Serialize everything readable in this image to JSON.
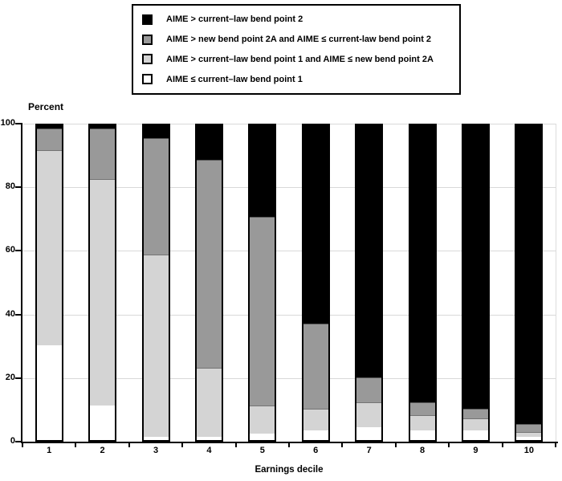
{
  "titles": {
    "y_axis_title": "Percent",
    "x_axis_title": "Earnings decile"
  },
  "legend": {
    "items": [
      {
        "label": "AIME > current–law bend point 2",
        "color": "#000000",
        "name": "black-swatch"
      },
      {
        "label": "AIME > new bend point 2A and AIME ≤ current-law bend point 2",
        "color": "#999999",
        "name": "dark-gray-swatch"
      },
      {
        "label": "AIME > current–law bend point 1 and AIME ≤ new bend point 2A",
        "color": "#d4d4d4",
        "name": "light-gray-swatch"
      },
      {
        "label": "AIME ≤ current–law bend point 1",
        "color": "#ffffff",
        "name": "white-swatch"
      }
    ]
  },
  "chart_data": {
    "type": "bar",
    "stacked": true,
    "title": "",
    "xlabel": "Earnings decile",
    "ylabel": "Percent",
    "categories": [
      "1",
      "2",
      "3",
      "4",
      "5",
      "6",
      "7",
      "8",
      "9",
      "10"
    ],
    "series": [
      {
        "name": "AIME ≤ current–law bend point 1",
        "color": "#ffffff",
        "values": [
          30,
          11,
          1,
          1,
          2,
          3,
          4,
          3,
          3,
          1
        ]
      },
      {
        "name": "AIME > current–law bend point 1 and AIME ≤ new bend point 2A",
        "color": "#d4d4d4",
        "values": [
          62,
          72,
          58,
          22,
          9,
          7,
          8,
          5,
          4,
          1.5
        ]
      },
      {
        "name": "AIME > new bend point 2A and AIME ≤ current-law bend point 2",
        "color": "#999999",
        "values": [
          7,
          16,
          37,
          66,
          60,
          27,
          8,
          4,
          3,
          2.5
        ]
      },
      {
        "name": "AIME > current–law bend point 2",
        "color": "#000000",
        "values": [
          1,
          1,
          4,
          11,
          29,
          63,
          80,
          88,
          90,
          95
        ]
      }
    ],
    "ylim": [
      0,
      100
    ],
    "y_ticks": [
      0,
      20,
      40,
      60,
      80,
      100
    ],
    "grid": true,
    "legend_position": "top"
  }
}
